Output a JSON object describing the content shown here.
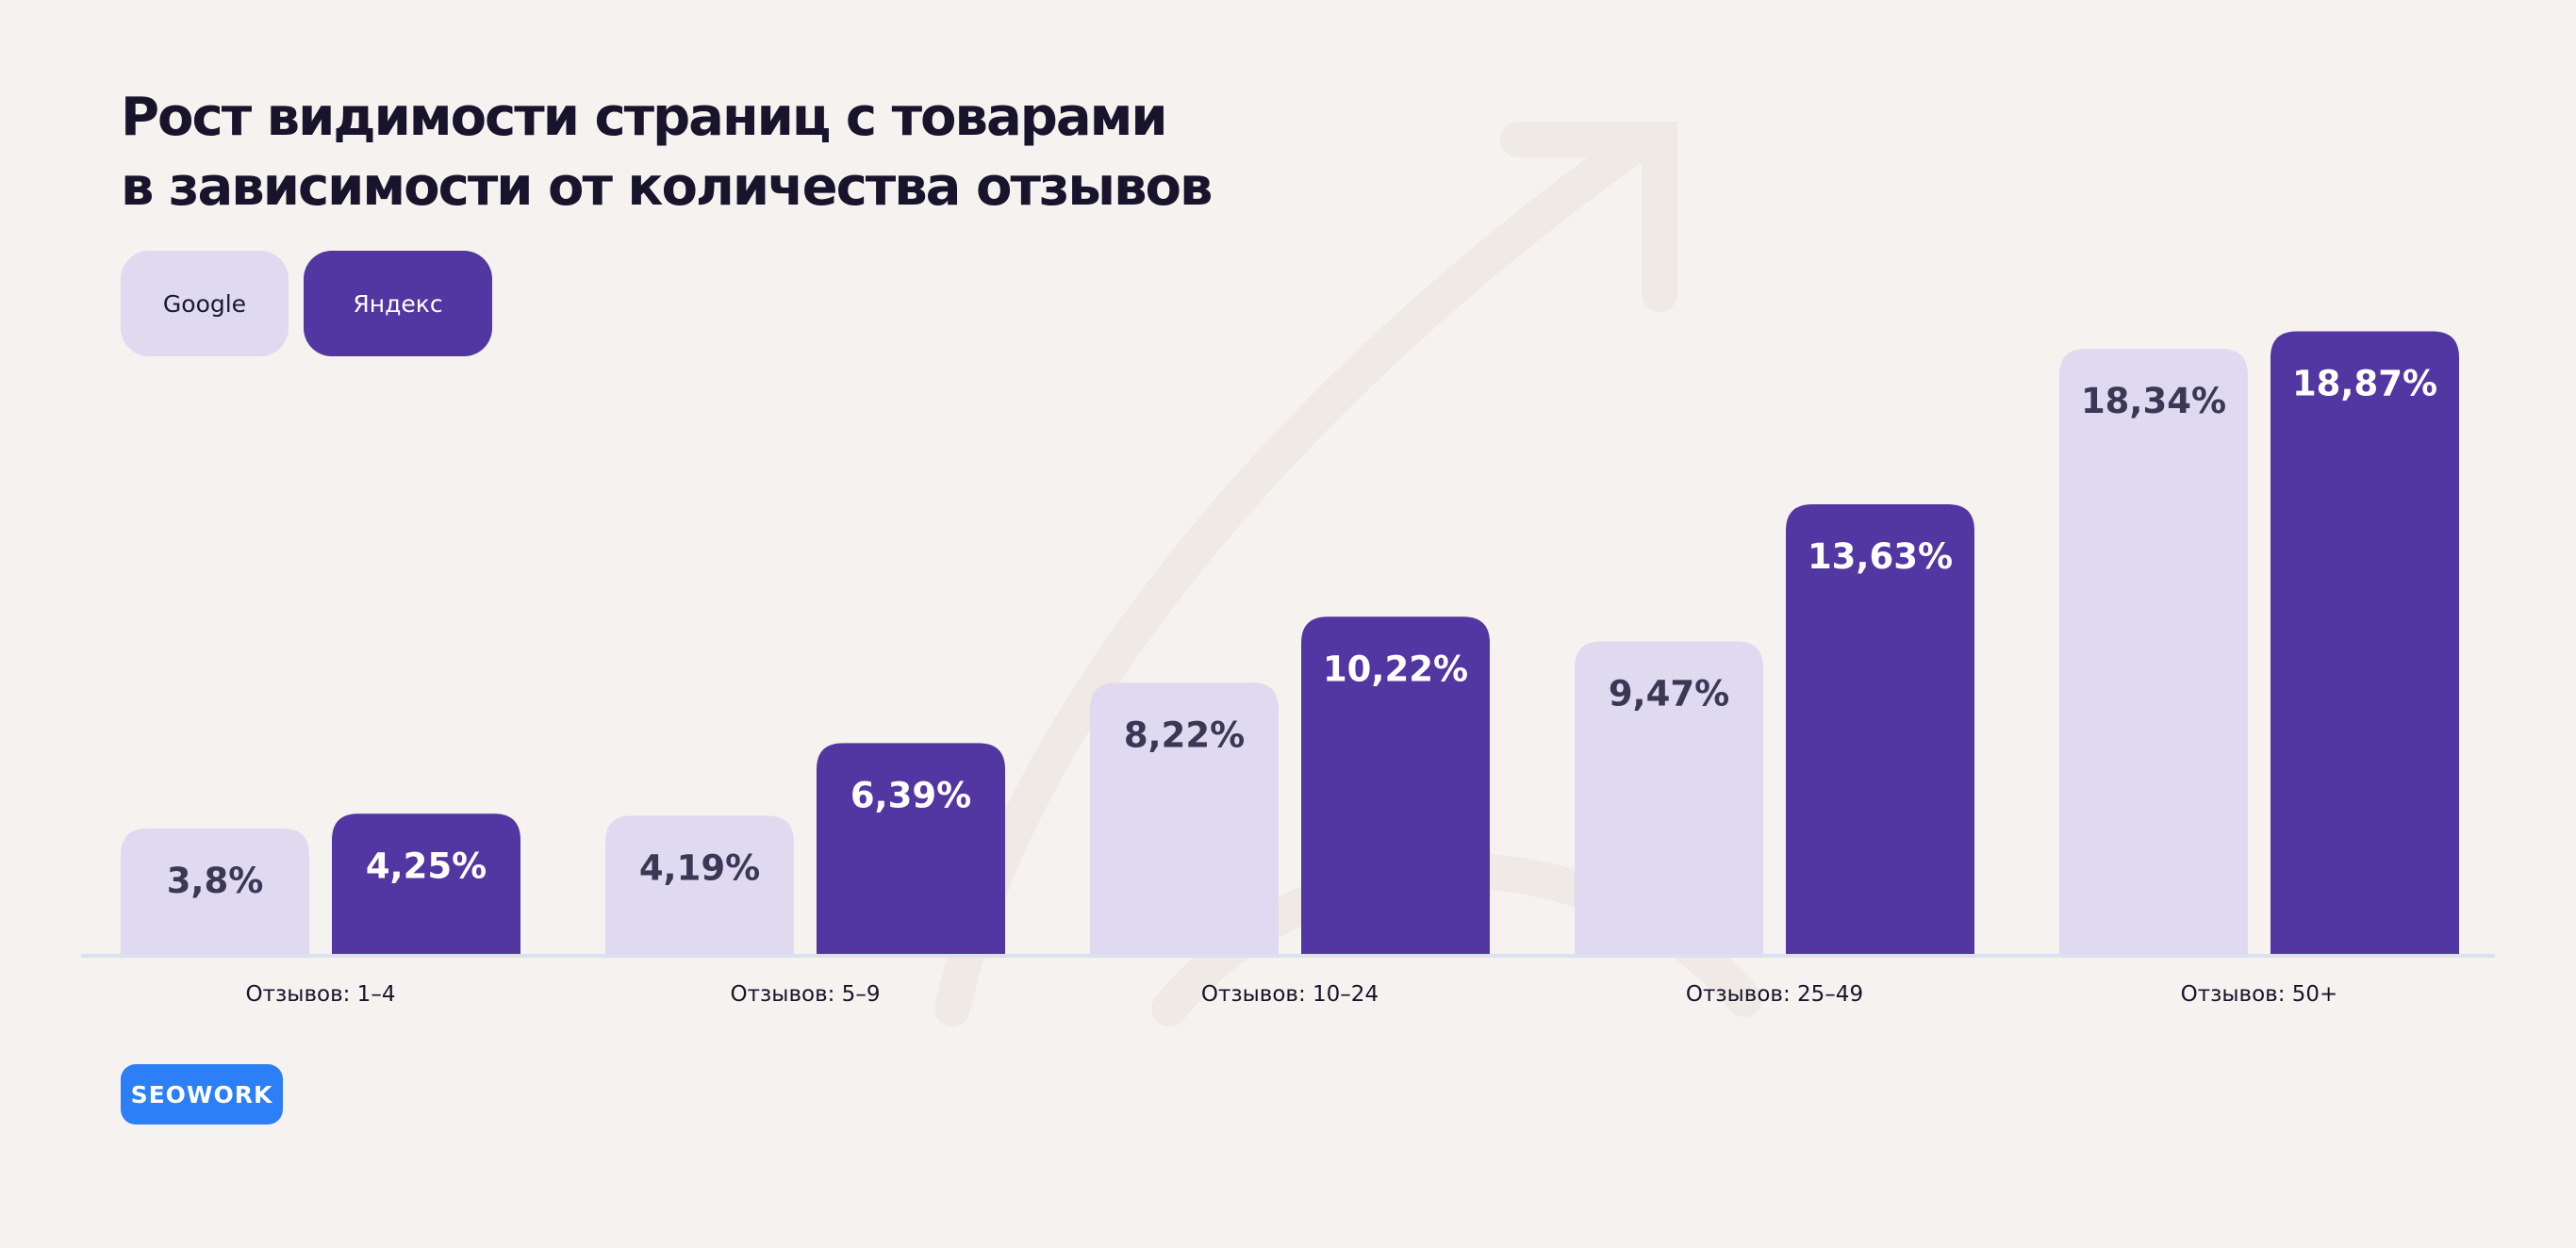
{
  "title_lines": [
    "Рост видимости страниц с товарами",
    "в зависимости от количества отзывов"
  ],
  "colors": {
    "background": "#f5f2ef",
    "google": "#dfdaf0",
    "yandex": "#5236a1",
    "brand": "#2c7ff6",
    "text_dark": "#17142c"
  },
  "brand_label": "SEOWORK",
  "decoration": "arrow-up-right-icon",
  "chart_data": {
    "type": "bar",
    "title": "Рост видимости страниц с товарами в зависимости от количества отзывов",
    "xlabel": "",
    "ylabel": "",
    "ylim": [
      0,
      20
    ],
    "grid": false,
    "legend_position": "top-left",
    "categories": [
      "Отзывов: 1–4",
      "Отзывов: 5–9",
      "Отзывов: 10–24",
      "Отзывов: 25–49",
      "Отзывов: 50+"
    ],
    "series": [
      {
        "name": "Google",
        "values": [
          3.8,
          4.19,
          8.22,
          9.47,
          18.34
        ],
        "labels": [
          "3,8%",
          "4,19%",
          "8,22%",
          "9,47%",
          "18,34%"
        ]
      },
      {
        "name": "Яндекс",
        "values": [
          4.25,
          6.39,
          10.22,
          13.63,
          18.87
        ],
        "labels": [
          "4,25%",
          "6,39%",
          "10,22%",
          "13,63%",
          "18,87%"
        ]
      }
    ]
  }
}
